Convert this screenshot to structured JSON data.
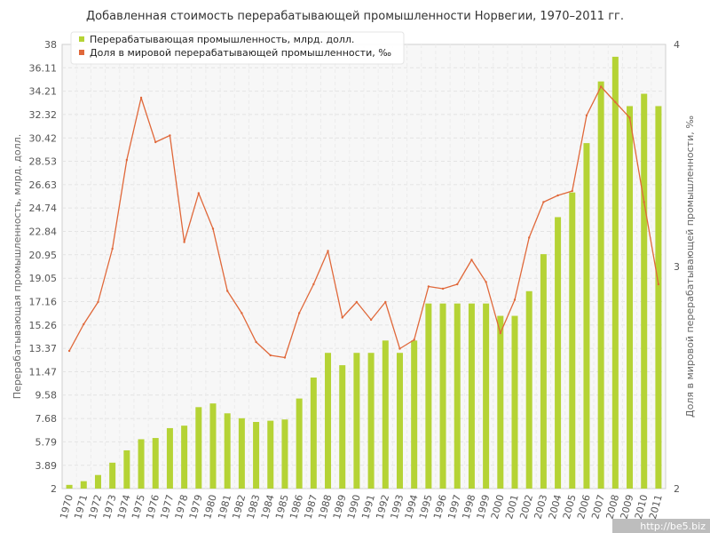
{
  "chart_data": {
    "type": "bar",
    "title": "Добавленная стоимость перерабатывающей промышленности Норвегии, 1970–2011 гг.",
    "ylabel": "Перерабатывающая промышленность, млрд. долл.",
    "y2label": "Доля в мировой перерабатывающей промышленности, ‰",
    "categories": [
      "1970",
      "1971",
      "1972",
      "1973",
      "1974",
      "1975",
      "1976",
      "1977",
      "1978",
      "1979",
      "1980",
      "1981",
      "1982",
      "1983",
      "1984",
      "1985",
      "1986",
      "1987",
      "1988",
      "1989",
      "1990",
      "1991",
      "1992",
      "1993",
      "1994",
      "1995",
      "1996",
      "1997",
      "1998",
      "1999",
      "2000",
      "2001",
      "2002",
      "2003",
      "2004",
      "2005",
      "2006",
      "2007",
      "2008",
      "2009",
      "2010",
      "2011"
    ],
    "ylim": [
      2,
      38
    ],
    "y2lim": [
      2,
      4
    ],
    "yticks": [
      "2",
      "3.89",
      "5.79",
      "7.68",
      "9.58",
      "11.47",
      "13.37",
      "15.26",
      "17.16",
      "19.05",
      "20.95",
      "22.84",
      "24.74",
      "26.63",
      "28.53",
      "30.42",
      "32.32",
      "34.21",
      "36.11",
      "38"
    ],
    "y2ticks": [
      "2",
      "3",
      "4"
    ],
    "grid": true,
    "legend_position": "top-left",
    "series": [
      {
        "name": "Перерабатывающая промышленность, млрд. долл.",
        "type": "bar",
        "axis": "left",
        "color": "#b5d335",
        "values": [
          2.3,
          2.6,
          3.1,
          4.1,
          5.1,
          6.0,
          6.1,
          6.9,
          7.1,
          8.6,
          8.9,
          8.1,
          7.7,
          7.4,
          7.5,
          7.6,
          9.3,
          11.0,
          13.0,
          12.0,
          13.0,
          13.0,
          14.0,
          13.0,
          14.0,
          17.0,
          17.0,
          17.0,
          17.0,
          17.0,
          16.0,
          16.0,
          18.0,
          21.0,
          24.0,
          26.0,
          30.0,
          35.0,
          37.0,
          33.0,
          34.0,
          33.0
        ]
      },
      {
        "name": "Доля в мировой перерабатывающей промышленности, ‰",
        "type": "line",
        "axis": "right",
        "color": "#e0683a",
        "values": [
          2.62,
          2.74,
          2.84,
          3.08,
          3.48,
          3.76,
          3.56,
          3.59,
          3.11,
          3.33,
          3.17,
          2.89,
          2.79,
          2.66,
          2.6,
          2.59,
          2.79,
          2.92,
          3.07,
          2.77,
          2.84,
          2.76,
          2.84,
          2.63,
          2.67,
          2.91,
          2.9,
          2.92,
          3.03,
          2.93,
          2.7,
          2.85,
          3.13,
          3.29,
          3.32,
          3.34,
          3.68,
          3.81,
          3.74,
          3.67,
          3.29,
          2.92
        ]
      }
    ]
  },
  "watermark": "http://be5.biz"
}
